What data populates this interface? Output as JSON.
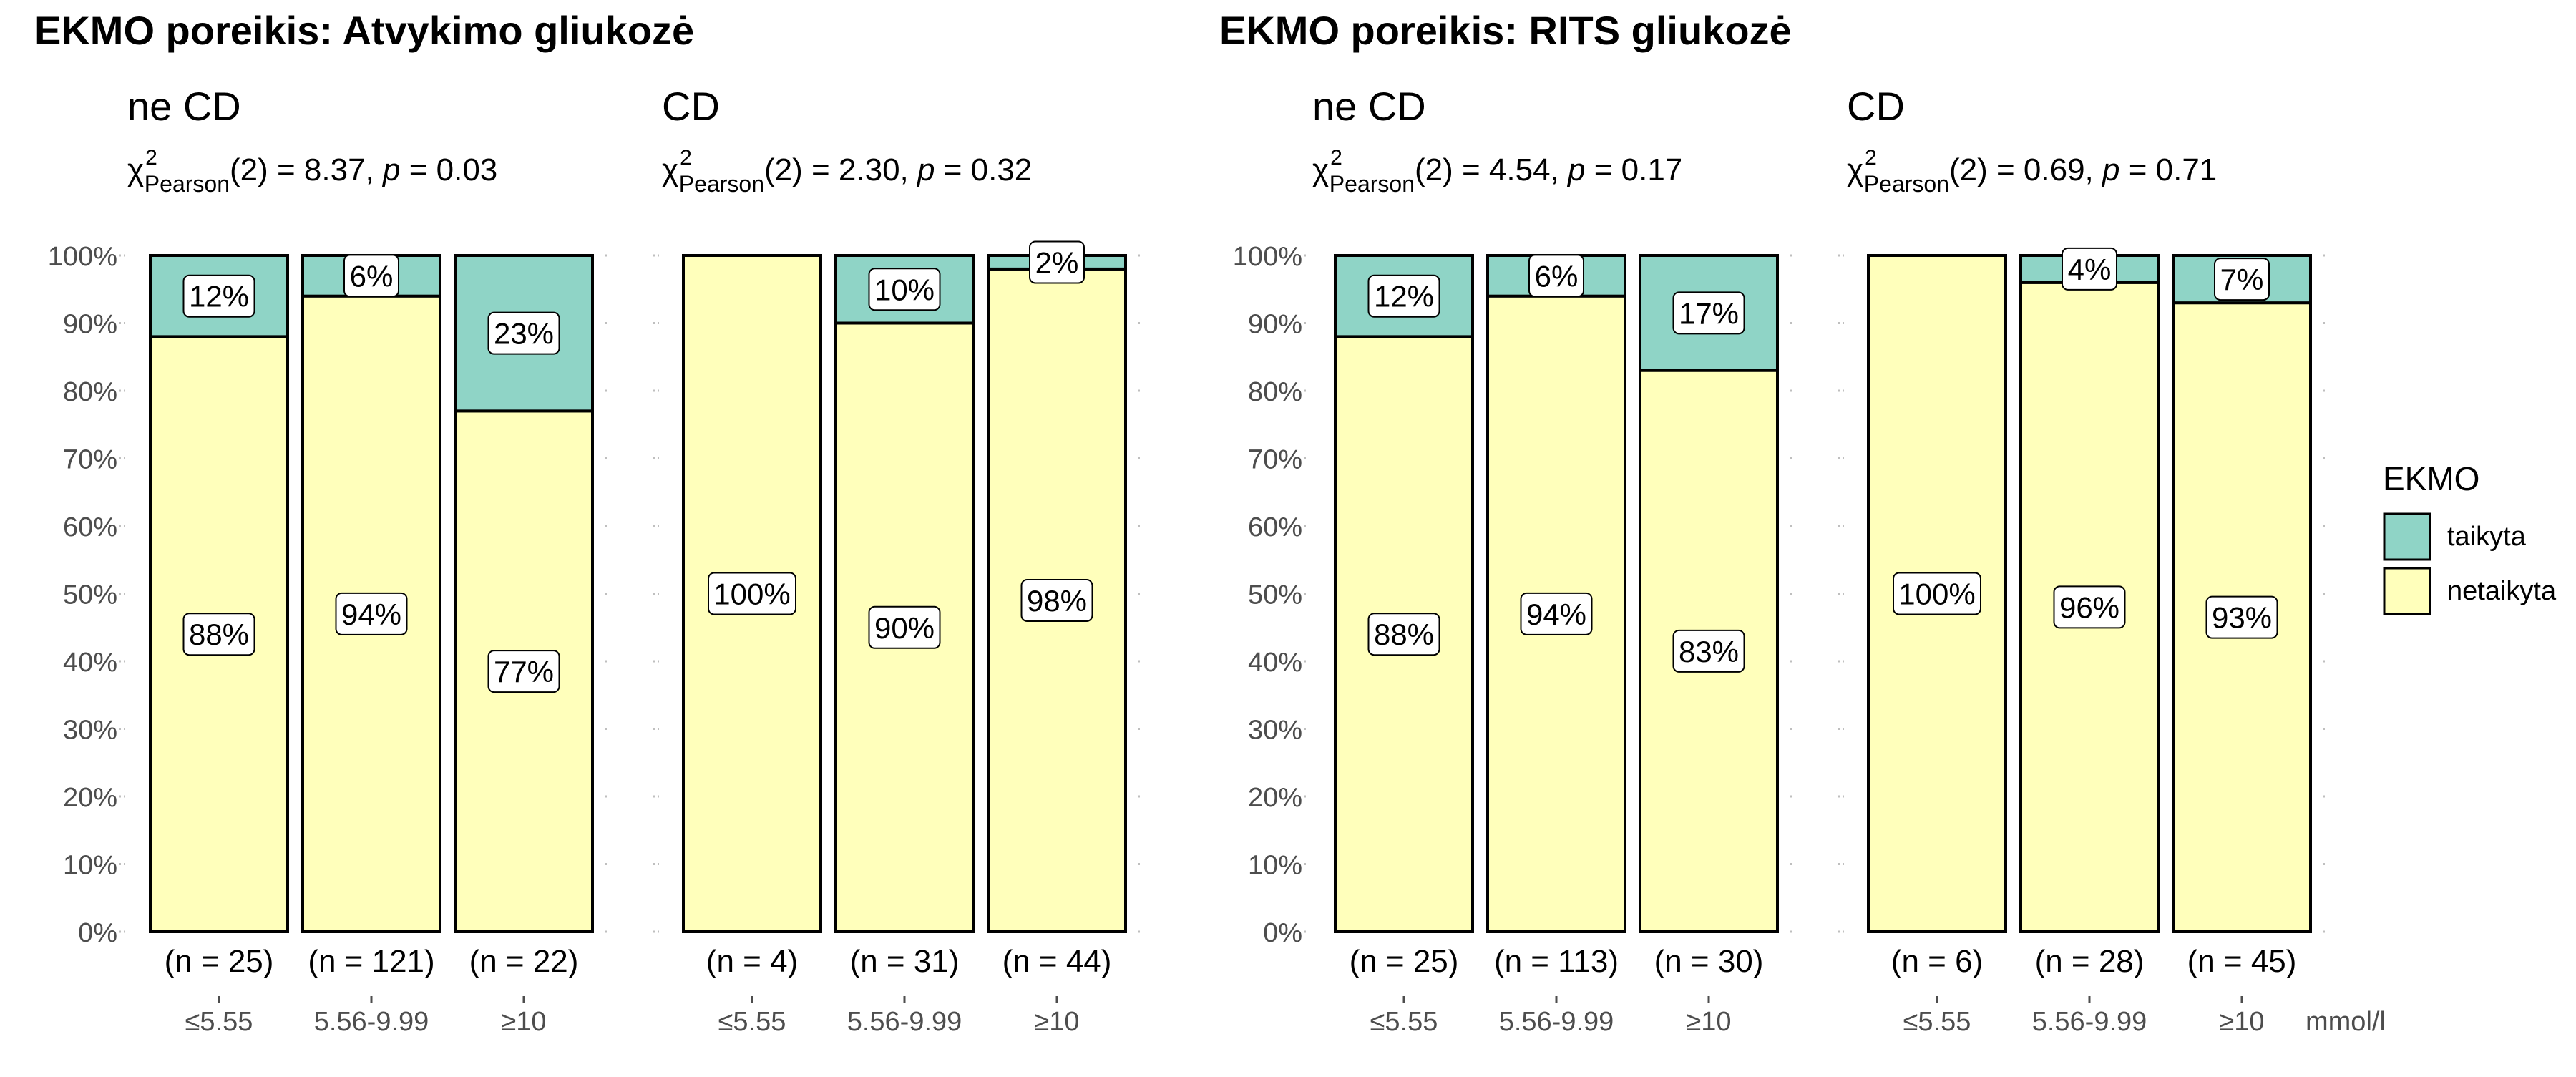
{
  "legend": {
    "title": "EKMO",
    "items": [
      {
        "label": "taikyta",
        "color": "#8FD4C6"
      },
      {
        "label": "netaikyta",
        "color": "#FFFFBB"
      }
    ]
  },
  "unit_label": "mmol/l",
  "chart_data": [
    {
      "type": "bar",
      "stacked": "percent",
      "title": "EKMO poreikis: Atvykimo gliukozė",
      "ylim": [
        0,
        100
      ],
      "yticks": [
        "0%",
        "10%",
        "20%",
        "30%",
        "40%",
        "50%",
        "60%",
        "70%",
        "80%",
        "90%",
        "100%"
      ],
      "panels": [
        {
          "label": "ne CD",
          "stat": {
            "chi_sub": "Pearson",
            "df": "2",
            "value": "8.37",
            "p": "0.03"
          },
          "categories": [
            "≤5.55",
            "5.56-9.99",
            "≥10"
          ],
          "n_labels": [
            "(n = 25)",
            "(n = 121)",
            "(n = 22)"
          ],
          "series": [
            {
              "name": "taikyta",
              "values": [
                12,
                6,
                23
              ],
              "labels": [
                "12%",
                "6%",
                "23%"
              ]
            },
            {
              "name": "netaikyta",
              "values": [
                88,
                94,
                77
              ],
              "labels": [
                "88%",
                "94%",
                "77%"
              ]
            }
          ]
        },
        {
          "label": "CD",
          "stat": {
            "chi_sub": "Pearson",
            "df": "2",
            "value": "2.30",
            "p": "0.32"
          },
          "categories": [
            "≤5.55",
            "5.56-9.99",
            "≥10"
          ],
          "n_labels": [
            "(n = 4)",
            "(n = 31)",
            "(n = 44)"
          ],
          "series": [
            {
              "name": "taikyta",
              "values": [
                0,
                10,
                2
              ],
              "labels": [
                "",
                "10%",
                "2%"
              ]
            },
            {
              "name": "netaikyta",
              "values": [
                100,
                90,
                98
              ],
              "labels": [
                "100%",
                "90%",
                "98%"
              ]
            }
          ]
        }
      ]
    },
    {
      "type": "bar",
      "stacked": "percent",
      "title": "EKMO poreikis: RITS gliukozė",
      "ylim": [
        0,
        100
      ],
      "yticks": [
        "0%",
        "10%",
        "20%",
        "30%",
        "40%",
        "50%",
        "60%",
        "70%",
        "80%",
        "90%",
        "100%"
      ],
      "panels": [
        {
          "label": "ne CD",
          "stat": {
            "chi_sub": "Pearson",
            "df": "2",
            "value": "4.54",
            "p": "0.17"
          },
          "categories": [
            "≤5.55",
            "5.56-9.99",
            "≥10"
          ],
          "n_labels": [
            "(n = 25)",
            "(n = 113)",
            "(n = 30)"
          ],
          "series": [
            {
              "name": "taikyta",
              "values": [
                12,
                6,
                17
              ],
              "labels": [
                "12%",
                "6%",
                "17%"
              ]
            },
            {
              "name": "netaikyta",
              "values": [
                88,
                94,
                83
              ],
              "labels": [
                "88%",
                "94%",
                "83%"
              ]
            }
          ]
        },
        {
          "label": "CD",
          "stat": {
            "chi_sub": "Pearson",
            "df": "2",
            "value": "0.69",
            "p": "0.71"
          },
          "categories": [
            "≤5.55",
            "5.56-9.99",
            "≥10"
          ],
          "n_labels": [
            "(n = 6)",
            "(n = 28)",
            "(n = 45)"
          ],
          "series": [
            {
              "name": "taikyta",
              "values": [
                0,
                4,
                7
              ],
              "labels": [
                "",
                "4%",
                "7%"
              ]
            },
            {
              "name": "netaikyta",
              "values": [
                100,
                96,
                93
              ],
              "labels": [
                "100%",
                "96%",
                "93%"
              ]
            }
          ]
        }
      ]
    }
  ]
}
